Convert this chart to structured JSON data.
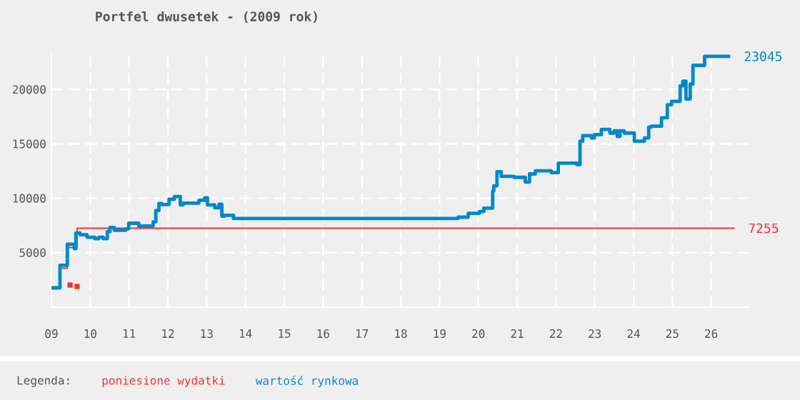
{
  "chart_data": {
    "type": "step",
    "title": "Portfel dwusetek - (2009 rok)",
    "legend_title": "Legenda:",
    "legend": "bottom",
    "grid": true,
    "xlim": [
      9,
      27
    ],
    "ylim": [
      0,
      23500
    ],
    "xticks": [
      {
        "value": 9,
        "label": "09"
      },
      10,
      11,
      12,
      13,
      14,
      15,
      16,
      17,
      18,
      19,
      20,
      21,
      22,
      23,
      24,
      25,
      26
    ],
    "yticks": [
      5000,
      10000,
      15000,
      20000
    ],
    "series": [
      {
        "name": "poniesione wydatki",
        "color": "#ee3333",
        "x": [
          9.22,
          9.41,
          9.66,
          26.6
        ],
        "values": [
          3580,
          5480,
          7255,
          7255
        ],
        "value_labels": [
          null,
          null,
          null,
          "7255"
        ]
      },
      {
        "type": "scatter",
        "marker": "square",
        "color": "#ee3333",
        "x": [
          9.48,
          9.66
        ],
        "values": [
          2030,
          1900
        ]
      },
      {
        "name": "wartość rynkowa",
        "color": "#0088cc",
        "x": [
          9.0,
          9.22,
          9.41,
          9.59,
          9.63,
          9.74,
          9.92,
          10.11,
          10.22,
          10.33,
          10.44,
          10.51,
          10.62,
          10.92,
          10.99,
          11.25,
          11.62,
          11.69,
          11.77,
          11.84,
          12.03,
          12.17,
          12.32,
          12.39,
          12.8,
          12.95,
          13.02,
          13.21,
          13.32,
          13.39,
          13.46,
          13.69,
          19.48,
          19.74,
          20.03,
          20.14,
          20.37,
          20.4,
          20.48,
          20.59,
          20.92,
          21.21,
          21.32,
          21.47,
          21.88,
          22.06,
          22.54,
          22.62,
          22.69,
          22.91,
          22.99,
          23.17,
          23.39,
          23.5,
          23.58,
          23.65,
          23.76,
          24.02,
          24.28,
          24.39,
          24.46,
          24.72,
          24.87,
          24.98,
          25.2,
          25.27,
          25.35,
          25.46,
          25.53,
          25.83,
          26.49
        ],
        "values": [
          1770,
          3840,
          5780,
          5380,
          6810,
          6650,
          6420,
          6300,
          6420,
          6300,
          6940,
          7330,
          7070,
          7200,
          7710,
          7450,
          7840,
          8880,
          9520,
          9430,
          9910,
          10170,
          9400,
          9560,
          9820,
          10040,
          9400,
          9130,
          9450,
          8360,
          8440,
          8140,
          8270,
          8620,
          8790,
          9100,
          10680,
          11150,
          12450,
          12020,
          11930,
          11500,
          12240,
          12530,
          12360,
          13230,
          13100,
          15250,
          15760,
          15550,
          15850,
          16330,
          16000,
          16200,
          15680,
          16200,
          16000,
          15250,
          15550,
          16550,
          16630,
          17400,
          18600,
          18910,
          20330,
          20760,
          19130,
          20500,
          22220,
          23045,
          23045
        ],
        "value_labels": [
          null,
          null,
          null,
          null,
          null,
          null,
          null,
          null,
          null,
          null,
          null,
          null,
          null,
          null,
          null,
          null,
          null,
          null,
          null,
          null,
          null,
          null,
          null,
          null,
          null,
          null,
          null,
          null,
          null,
          null,
          null,
          null,
          null,
          null,
          null,
          null,
          null,
          null,
          null,
          null,
          null,
          null,
          null,
          null,
          null,
          null,
          null,
          null,
          null,
          null,
          null,
          null,
          null,
          null,
          null,
          null,
          null,
          null,
          null,
          null,
          null,
          null,
          null,
          null,
          null,
          null,
          null,
          null,
          null,
          null,
          "23045"
        ]
      }
    ]
  }
}
